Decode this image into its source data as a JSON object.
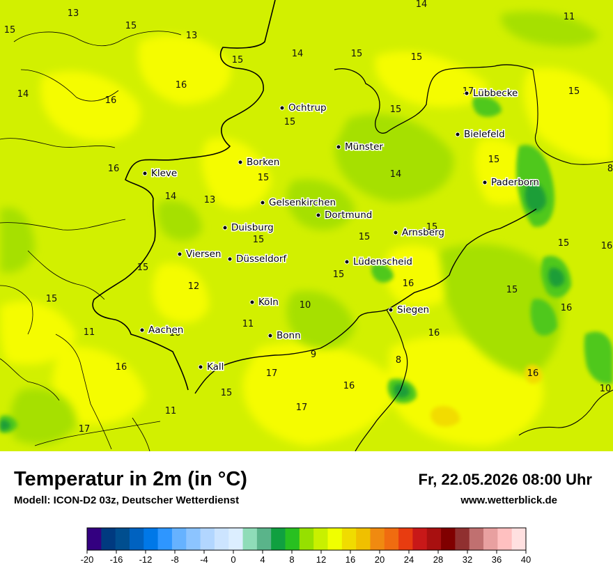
{
  "header": {
    "title": "Temperatur in 2m (in °C)",
    "model": "Modell: ICON-D2 03z, Deutscher Wetterdienst",
    "datetime": "Fr, 22.05.2026 08:00 Uhr",
    "website": "www.wetterblick.de"
  },
  "colors": {
    "base_field": "#d2f000",
    "band_14": "#a6e000",
    "band_15": "#d2f000",
    "band_16": "#f5fc00",
    "band_17": "#f2dc00",
    "band_12": "#4fc81f",
    "band_8": "#1a9e38"
  },
  "cities": [
    {
      "name": "Ochtrup"
    },
    {
      "name": "Lübbecke"
    },
    {
      "name": "Bielefeld"
    },
    {
      "name": "Münster"
    },
    {
      "name": "Borken"
    },
    {
      "name": "Kleve"
    },
    {
      "name": "Paderborn"
    },
    {
      "name": "Gelsenkirchen"
    },
    {
      "name": "Dortmund"
    },
    {
      "name": "Duisburg"
    },
    {
      "name": "Arnsberg"
    },
    {
      "name": "Viersen"
    },
    {
      "name": "Düsseldorf"
    },
    {
      "name": "Lüdenscheid"
    },
    {
      "name": "Köln"
    },
    {
      "name": "Siegen"
    },
    {
      "name": "Aachen"
    },
    {
      "name": "Bonn"
    },
    {
      "name": "Kall"
    }
  ],
  "values": [
    "13",
    "15",
    "15",
    "13",
    "14",
    "15",
    "15",
    "14",
    "11",
    "15",
    "14",
    "16",
    "16",
    "17",
    "15",
    "15",
    "15",
    "16",
    "15",
    "14",
    "8",
    "15",
    "14",
    "13",
    "15",
    "15",
    "15",
    "15",
    "15",
    "16",
    "12",
    "15",
    "15",
    "16",
    "15",
    "11",
    "10",
    "11",
    "9",
    "16",
    "16",
    "16",
    "16",
    "17",
    "16",
    "8",
    "15",
    "11",
    "16",
    "10",
    "17",
    "17"
  ],
  "legend": {
    "colors": [
      "#330080",
      "#003a80",
      "#004e8f",
      "#0062c0",
      "#0078e8",
      "#2e96ff",
      "#66b2ff",
      "#8cc4ff",
      "#b2d6ff",
      "#cce4ff",
      "#dceeff",
      "#8fdcb8",
      "#5ab48a",
      "#10a040",
      "#28c020",
      "#96e000",
      "#c8f000",
      "#f0ff00",
      "#f0dc00",
      "#f0c000",
      "#f08a10",
      "#f06c10",
      "#e83c10",
      "#c81818",
      "#a81010",
      "#800000",
      "#903030",
      "#c07070",
      "#e8a0a0",
      "#ffc0c0",
      "#ffe0e0"
    ],
    "ticks": [
      "-20",
      "-16",
      "-12",
      "-8",
      "-4",
      "0",
      "4",
      "8",
      "12",
      "16",
      "20",
      "24",
      "28",
      "32",
      "36",
      "40"
    ]
  }
}
